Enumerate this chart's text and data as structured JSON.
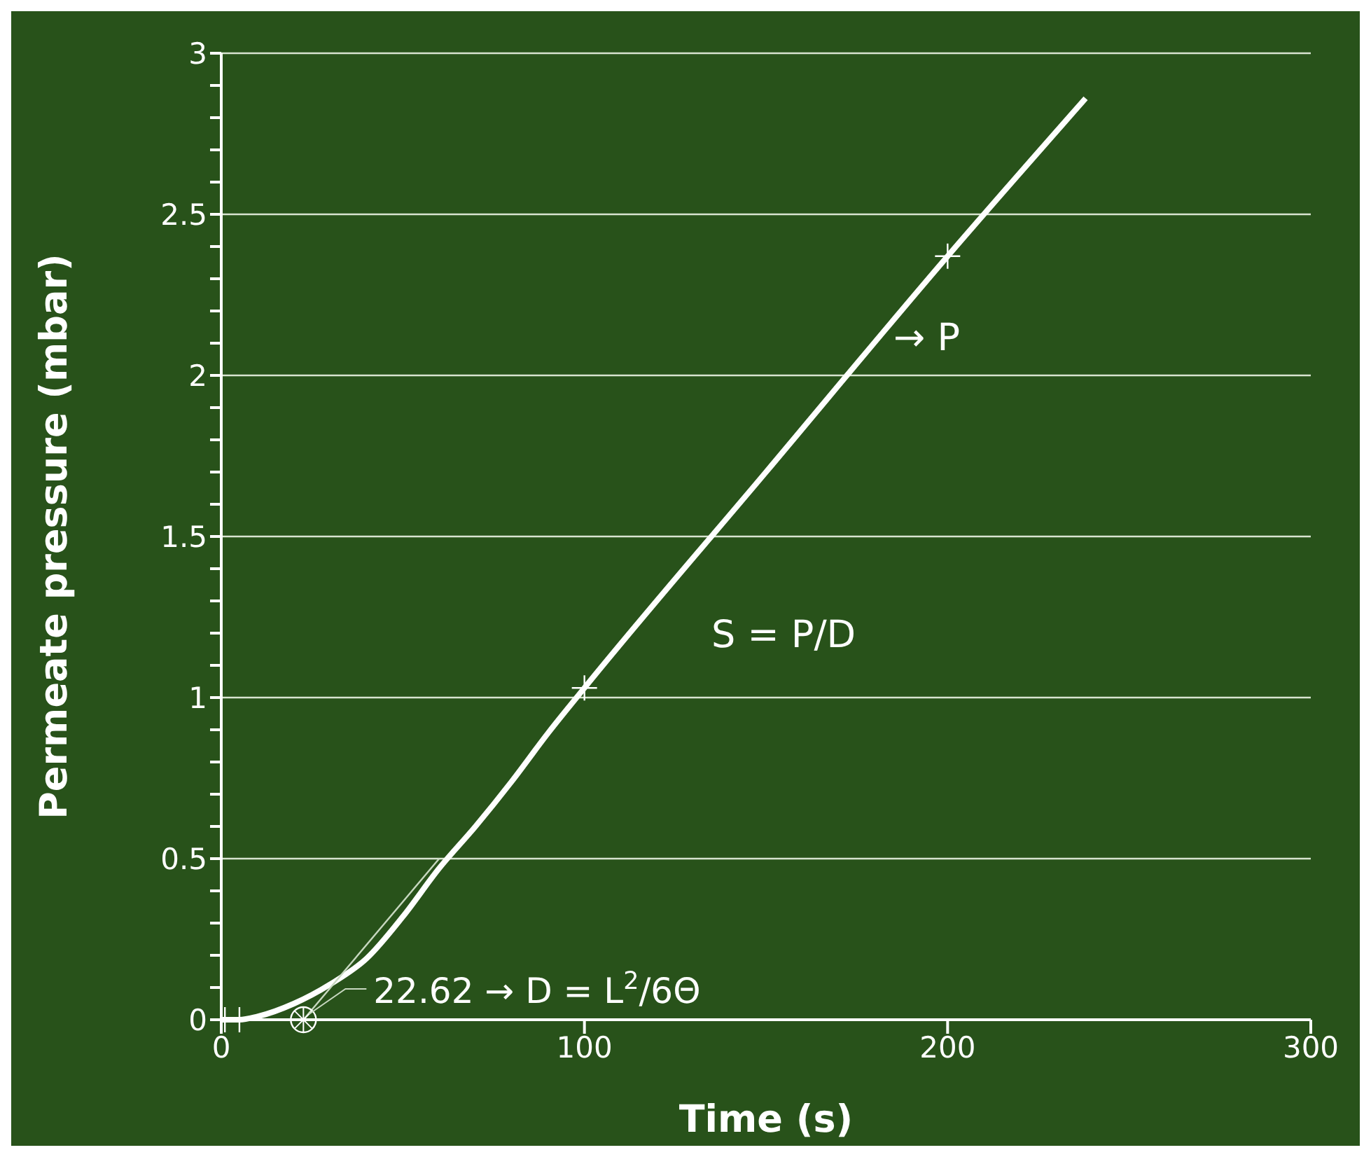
{
  "chart_data": {
    "type": "line",
    "xlabel": "Time (s)",
    "ylabel": "Permeate pressure (mbar)",
    "xlim": [
      0,
      300
    ],
    "xticks": [
      0,
      100,
      200,
      300
    ],
    "ylim": [
      0,
      3
    ],
    "yticks": [
      0,
      {
        "value": 0.1,
        "label": null
      },
      {
        "value": 0.2,
        "label": null
      },
      {
        "value": 0.3,
        "label": null
      },
      {
        "value": 0.4,
        "label": null
      },
      0.5,
      {
        "value": 0.6,
        "label": null
      },
      {
        "value": 0.7,
        "label": null
      },
      {
        "value": 0.8,
        "label": null
      },
      {
        "value": 0.9,
        "label": null
      },
      1,
      {
        "value": 1.1,
        "label": null
      },
      {
        "value": 1.2,
        "label": null
      },
      {
        "value": 1.3,
        "label": null
      },
      {
        "value": 1.4,
        "label": null
      },
      1.5,
      {
        "value": 1.6,
        "label": null
      },
      {
        "value": 1.7,
        "label": null
      },
      {
        "value": 1.8,
        "label": null
      },
      {
        "value": 1.9,
        "label": null
      },
      2,
      {
        "value": 2.1,
        "label": null
      },
      {
        "value": 2.2,
        "label": null
      },
      {
        "value": 2.3,
        "label": null
      },
      {
        "value": 2.4,
        "label": null
      },
      2.5,
      {
        "value": 2.6,
        "label": null
      },
      {
        "value": 2.7,
        "label": null
      },
      {
        "value": 2.8,
        "label": null
      },
      {
        "value": 2.9,
        "label": null
      },
      3
    ],
    "grid": "y",
    "series": [
      {
        "color": "#ffffff",
        "x": [
          0,
          5,
          10,
          20,
          30,
          40,
          50,
          60,
          70,
          80,
          90,
          100,
          150,
          200,
          238
        ],
        "values": [
          0,
          0,
          0.01,
          0.05,
          0.11,
          0.19,
          0.32,
          0.47,
          0.6,
          0.74,
          0.89,
          1.03,
          1.7,
          2.37,
          2.86
        ]
      },
      {
        "color": "#c8d8c0",
        "x": [
          22.62,
          60
        ],
        "values": [
          0,
          0.5
        ]
      },
      {
        "type": "scatter",
        "color": "#ffffff",
        "marker": "cross",
        "x": [
          100,
          200
        ],
        "values": [
          1.03,
          2.37
        ]
      },
      {
        "type": "scatter",
        "color": "#ffffff",
        "marker": "cross",
        "x": [
          1,
          5
        ],
        "values": [
          0,
          0
        ]
      },
      {
        "type": "scatter",
        "color": "#ffffff",
        "marker": "circle",
        "x": [
          22.62
        ],
        "values": [
          0
        ]
      }
    ],
    "annotations": [
      {
        "text": "22.62 → D  = L$^{2}$/6Θ",
        "x": 22.62,
        "y": 0
      },
      "S = P/D",
      "→  P"
    ]
  }
}
